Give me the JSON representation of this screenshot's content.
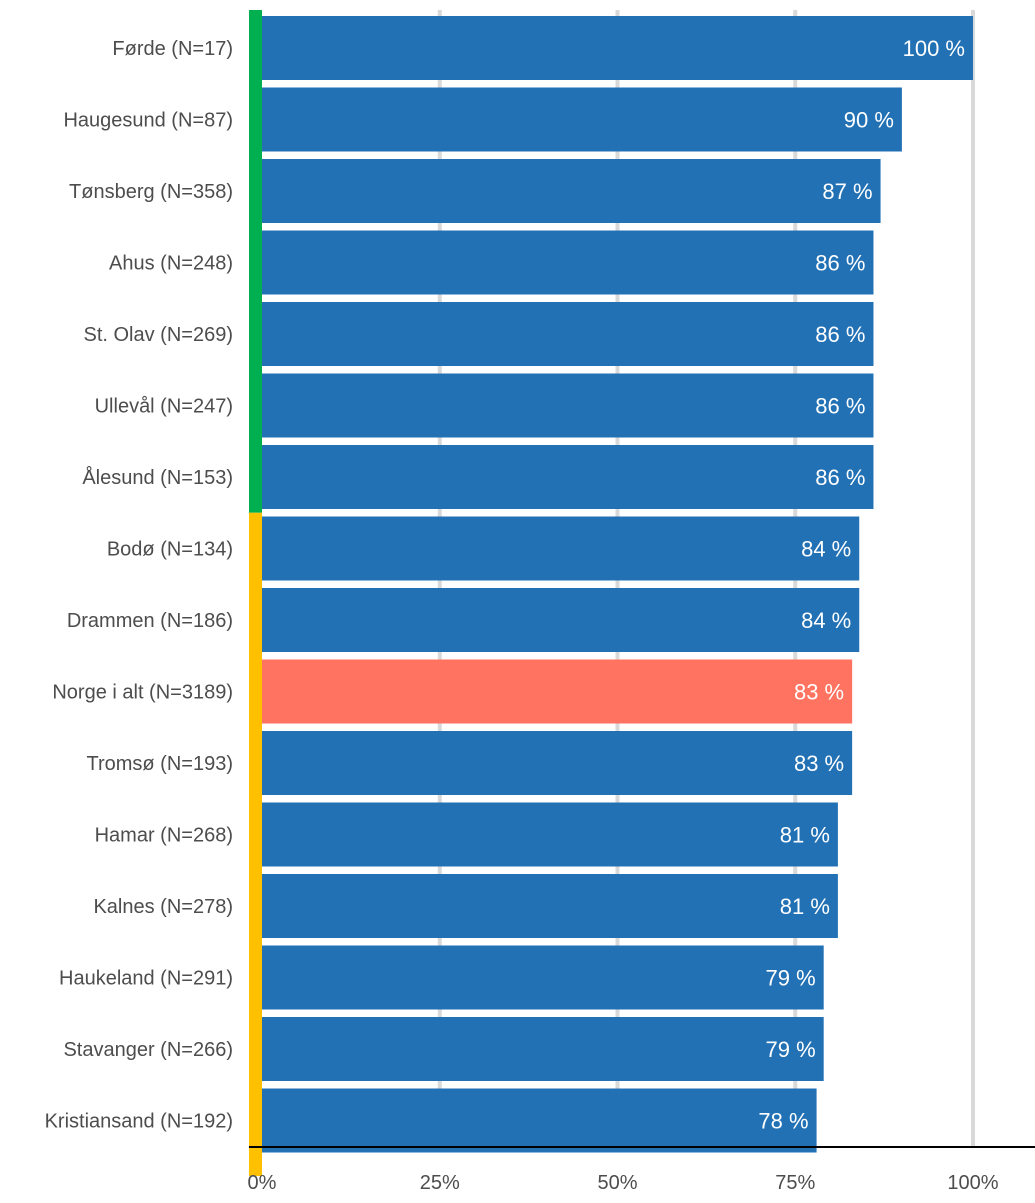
{
  "chart_data": {
    "type": "bar",
    "orientation": "horizontal",
    "title": "",
    "xlabel": "",
    "ylabel": "",
    "xlim": [
      0,
      100
    ],
    "grid": true,
    "legend": "none",
    "x_ticks": [
      "0%",
      "25%",
      "50%",
      "75%",
      "100%"
    ],
    "x_tick_values": [
      0,
      25,
      50,
      75,
      100
    ],
    "categories": [
      "Førde (N=17)",
      "Haugesund (N=87)",
      "Tønsberg (N=358)",
      "Ahus (N=248)",
      "St. Olav (N=269)",
      "Ullevål (N=247)",
      "Ålesund (N=153)",
      "Bodø (N=134)",
      "Drammen (N=186)",
      "Norge i alt (N=3189)",
      "Tromsø (N=193)",
      "Hamar (N=268)",
      "Kalnes (N=278)",
      "Haukeland (N=291)",
      "Stavanger (N=266)",
      "Kristiansand (N=192)"
    ],
    "values": [
      100,
      90,
      87,
      86,
      86,
      86,
      86,
      84,
      84,
      83,
      83,
      81,
      81,
      79,
      79,
      78
    ],
    "value_labels": [
      "100 %",
      "90 %",
      "87 %",
      "86 %",
      "86 %",
      "86 %",
      "86 %",
      "84 %",
      "84 %",
      "83 %",
      "83 %",
      "81 %",
      "81 %",
      "79 %",
      "79 %",
      "78 %"
    ],
    "highlight_index": 9,
    "side_bands": [
      {
        "from_index": 0,
        "to_index": 6,
        "color": "#00b050"
      },
      {
        "from_index": 7,
        "to_index": 15,
        "color": "#ffc000"
      }
    ],
    "colors": {
      "bar": "#2271b5",
      "highlight": "#ff7360",
      "grid": "#d9d9d9",
      "axis": "#000000",
      "label_text": "#4d4d4d",
      "tick_text": "#4d4d4d",
      "value_text": "#ffffff"
    }
  }
}
